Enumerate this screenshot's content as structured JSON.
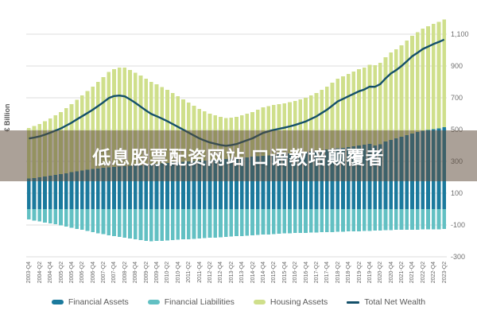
{
  "chart": {
    "y_axis_label": "€ Billion",
    "y_ticks": [
      {
        "label": "1,100",
        "value": 1100
      },
      {
        "label": "900",
        "value": 900
      },
      {
        "label": "700",
        "value": 700
      },
      {
        "label": "500",
        "value": 500
      },
      {
        "label": "300",
        "value": 300
      },
      {
        "label": "100",
        "value": 100
      },
      {
        "label": "-100",
        "value": -100
      },
      {
        "label": "-300",
        "value": -300
      }
    ],
    "overlay_banner_text": "低息股票配资网站 口语教培颠覆者",
    "legend": [
      {
        "label": "Financial Assets",
        "series": 0,
        "swatch": "bar"
      },
      {
        "label": "Financial Liabilities",
        "series": 1,
        "swatch": "bar"
      },
      {
        "label": "Housing Assets",
        "series": 2,
        "swatch": "bar"
      },
      {
        "label": "Total Net Wealth",
        "series": 3,
        "swatch": "line"
      }
    ],
    "colors": {
      "grid": "#dcdcdc",
      "axis_text": "#6f6f6f",
      "banner_bg": "rgba(93,74,58,0.52)"
    }
  },
  "chart_data": {
    "type": "bar",
    "subtype": "stacked-bars-with-line",
    "unit": "€ Billion",
    "ylim": [
      -300,
      1100
    ],
    "x_label_every": 2,
    "categories": [
      "2003-Q4",
      "2004-Q1",
      "2004-Q2",
      "2004-Q3",
      "2004-Q4",
      "2005-Q1",
      "2005-Q2",
      "2005-Q3",
      "2005-Q4",
      "2006-Q1",
      "2006-Q2",
      "2006-Q3",
      "2006-Q4",
      "2007-Q1",
      "2007-Q2",
      "2007-Q3",
      "2007-Q4",
      "2008-Q1",
      "2008-Q2",
      "2008-Q3",
      "2008-Q4",
      "2009-Q1",
      "2009-Q2",
      "2009-Q3",
      "2009-Q4",
      "2010-Q1",
      "2010-Q2",
      "2010-Q3",
      "2010-Q4",
      "2011-Q1",
      "2011-Q2",
      "2011-Q3",
      "2011-Q4",
      "2012-Q1",
      "2012-Q2",
      "2012-Q3",
      "2012-Q4",
      "2013-Q1",
      "2013-Q2",
      "2013-Q3",
      "2013-Q4",
      "2014-Q1",
      "2014-Q2",
      "2014-Q3",
      "2014-Q4",
      "2015-Q1",
      "2015-Q2",
      "2015-Q3",
      "2015-Q4",
      "2016-Q1",
      "2016-Q2",
      "2016-Q3",
      "2016-Q4",
      "2017-Q1",
      "2017-Q2",
      "2017-Q3",
      "2017-Q4",
      "2018-Q1",
      "2018-Q2",
      "2018-Q3",
      "2018-Q4",
      "2019-Q1",
      "2019-Q2",
      "2019-Q3",
      "2019-Q4",
      "2020-Q1",
      "2020-Q2",
      "2020-Q3",
      "2020-Q4",
      "2021-Q1",
      "2021-Q2",
      "2021-Q3",
      "2021-Q4",
      "2022-Q1",
      "2022-Q2",
      "2022-Q3",
      "2022-Q4",
      "2023-Q1",
      "2023-Q2"
    ],
    "series": [
      {
        "name": "Financial Assets",
        "type": "bar",
        "stack": "assets",
        "color": "#1b7a9d",
        "values": [
          192,
          196,
          200,
          205,
          210,
          215,
          220,
          226,
          232,
          237,
          242,
          247,
          252,
          256,
          260,
          263,
          266,
          268,
          270,
          272,
          274,
          276,
          279,
          282,
          285,
          288,
          291,
          294,
          296,
          298,
          300,
          302,
          304,
          306,
          308,
          310,
          312,
          314,
          317,
          320,
          323,
          326,
          329,
          332,
          335,
          338,
          341,
          344,
          347,
          350,
          353,
          356,
          359,
          362,
          366,
          370,
          374,
          378,
          382,
          386,
          390,
          394,
          399,
          404,
          409,
          400,
          408,
          425,
          435,
          445,
          455,
          465,
          475,
          485,
          492,
          498,
          503,
          508,
          514
        ]
      },
      {
        "name": "Financial Liabilities",
        "type": "bar",
        "stack": "liabilities",
        "color": "#62c0c3",
        "values": [
          -66,
          -72,
          -78,
          -84,
          -90,
          -96,
          -103,
          -110,
          -117,
          -124,
          -131,
          -138,
          -145,
          -152,
          -158,
          -164,
          -170,
          -176,
          -181,
          -186,
          -190,
          -196,
          -200,
          -202,
          -201,
          -199,
          -197,
          -195,
          -193,
          -191,
          -189,
          -187,
          -185,
          -183,
          -181,
          -179,
          -177,
          -174,
          -172,
          -171,
          -169,
          -167,
          -165,
          -163,
          -161,
          -159,
          -157,
          -155,
          -153,
          -152,
          -151,
          -150,
          -149,
          -148,
          -147,
          -146,
          -145,
          -144,
          -143,
          -142,
          -141,
          -140,
          -139,
          -138,
          -137,
          -136,
          -134,
          -133,
          -132,
          -131,
          -130,
          -130,
          -129,
          -129,
          -128,
          -128,
          -127,
          -127,
          -126
        ]
      },
      {
        "name": "Housing Assets",
        "type": "bar",
        "stack": "assets",
        "color": "#cfdf8b",
        "values": [
          318,
          326,
          335,
          347,
          360,
          375,
          390,
          409,
          428,
          451,
          473,
          495,
          518,
          544,
          570,
          599,
          615,
          622,
          620,
          604,
          584,
          564,
          541,
          518,
          500,
          480,
          459,
          436,
          414,
          392,
          370,
          348,
          326,
          308,
          292,
          280,
          268,
          258,
          257,
          260,
          267,
          274,
          281,
          293,
          305,
          310,
          314,
          316,
          318,
          322,
          327,
          334,
          341,
          353,
          364,
          380,
          396,
          417,
          438,
          449,
          460,
          471,
          481,
          486,
          498,
          505,
          512,
          530,
          550,
          560,
          575,
          595,
          615,
          627,
          643,
          652,
          662,
          670,
          678
        ]
      },
      {
        "name": "Total Net Wealth",
        "type": "line",
        "color": "#14506a",
        "values": [
          444,
          450,
          457,
          468,
          480,
          494,
          507,
          525,
          543,
          564,
          584,
          604,
          625,
          648,
          672,
          698,
          711,
          714,
          709,
          690,
          668,
          644,
          620,
          598,
          584,
          569,
          553,
          535,
          517,
          499,
          481,
          463,
          445,
          431,
          419,
          411,
          403,
          398,
          402,
          409,
          421,
          433,
          445,
          462,
          479,
          489,
          498,
          505,
          512,
          520,
          529,
          540,
          551,
          567,
          583,
          604,
          625,
          651,
          677,
          693,
          709,
          725,
          741,
          752,
          770,
          769,
          786,
          822,
          853,
          874,
          900,
          930,
          961,
          983,
          1007,
          1022,
          1038,
          1051,
          1066
        ]
      }
    ]
  }
}
